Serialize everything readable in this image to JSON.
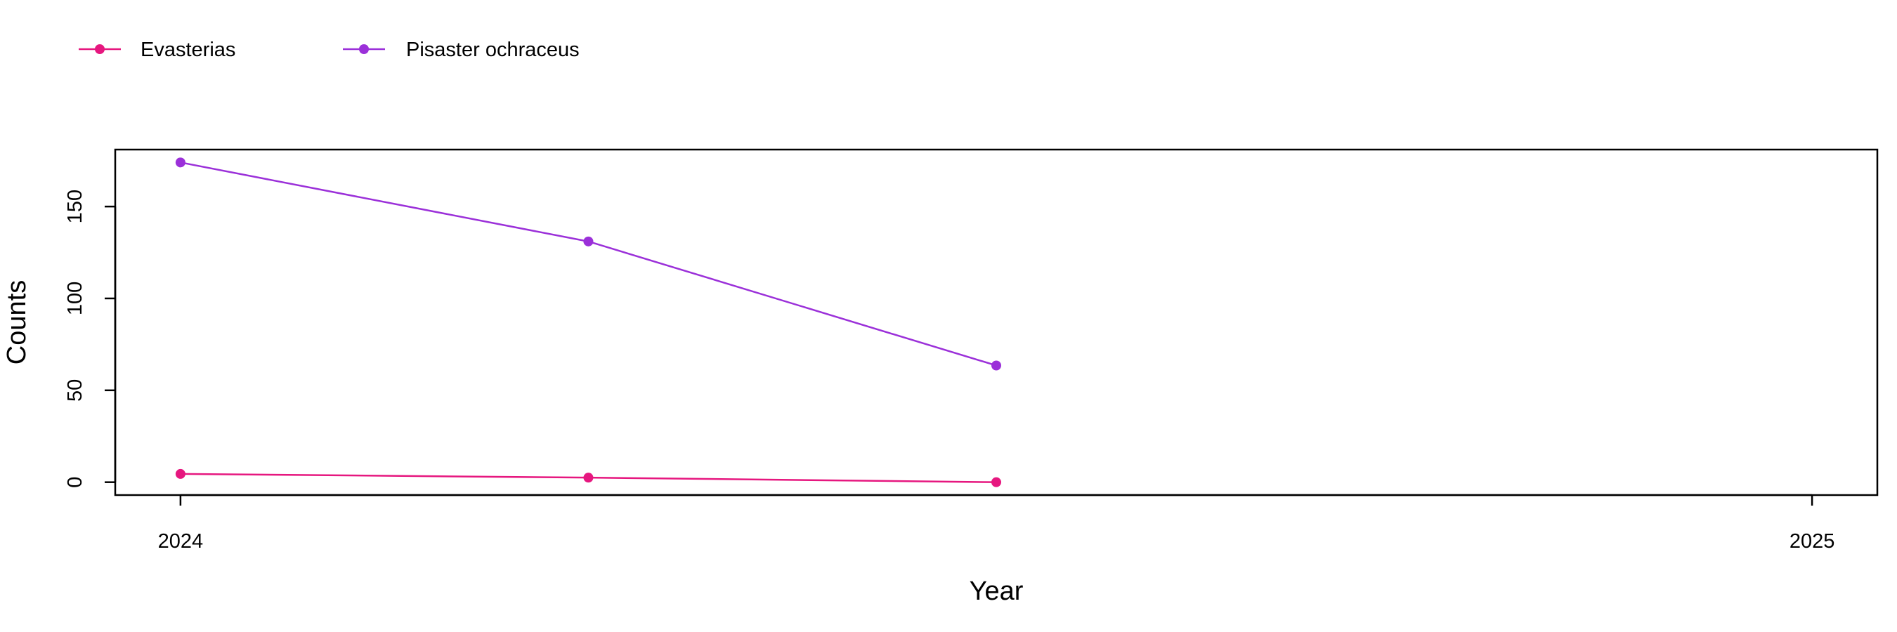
{
  "chart_data": {
    "type": "line",
    "title": "",
    "xlabel": "Year",
    "ylabel": "Counts",
    "x": [
      2024.0,
      2024.25,
      2024.5
    ],
    "xlim": [
      2023.96,
      2025.04
    ],
    "ylim": [
      -7,
      181
    ],
    "xticks": [
      2024,
      2025
    ],
    "xtick_labels": [
      "2024",
      "2025"
    ],
    "yticks": [
      0,
      50,
      100,
      150
    ],
    "ytick_labels": [
      "0",
      "50",
      "100",
      "150"
    ],
    "grid": false,
    "legend_position": "top-left",
    "series": [
      {
        "name": "Evasterias",
        "color": "#e6177f",
        "values": [
          4.5,
          2.5,
          0
        ]
      },
      {
        "name": "Pisaster ochraceus",
        "color": "#9b30d9",
        "values": [
          174,
          131,
          63.5
        ]
      }
    ]
  }
}
